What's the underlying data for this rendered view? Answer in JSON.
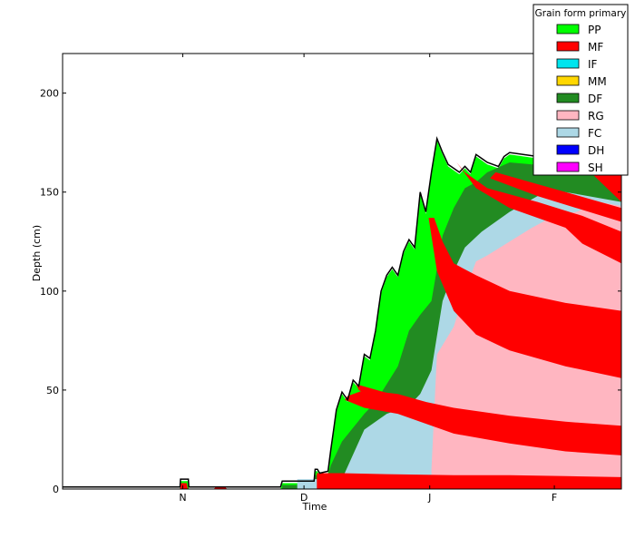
{
  "chart_data": {
    "type": "area",
    "title": "",
    "xlabel": "Time",
    "ylabel": "Depth (cm)",
    "x_range": [
      0,
      1
    ],
    "ylim": [
      0,
      220
    ],
    "x_ticks": [
      {
        "label": "N",
        "value": 0.215
      },
      {
        "label": "D",
        "value": 0.432
      },
      {
        "label": "J",
        "value": 0.657
      },
      {
        "label": "F",
        "value": 0.88
      }
    ],
    "y_ticks": [
      0,
      50,
      100,
      150,
      200
    ],
    "grid": false,
    "legend": {
      "title": "Grain form primary",
      "placement": "top-right",
      "entries": [
        {
          "label": "PP",
          "color": "#00ff00"
        },
        {
          "label": "MF",
          "color": "#ff0000"
        },
        {
          "label": "IF",
          "color": "#00e5ee"
        },
        {
          "label": "MM",
          "color": "#ffd700"
        },
        {
          "label": "DF",
          "color": "#228b22"
        },
        {
          "label": "RG",
          "color": "#ffb6c1"
        },
        {
          "label": "FC",
          "color": "#add8e6"
        },
        {
          "label": "DH",
          "color": "#0000ff"
        },
        {
          "label": "SH",
          "color": "#ff00ff"
        }
      ]
    },
    "snow_height_profile": [
      [
        0.0,
        1.0
      ],
      [
        0.21,
        1.0
      ],
      [
        0.211,
        5.0
      ],
      [
        0.225,
        5.0
      ],
      [
        0.226,
        1.0
      ],
      [
        0.39,
        1.0
      ],
      [
        0.393,
        4.0
      ],
      [
        0.45,
        4.0
      ],
      [
        0.452,
        10.0
      ],
      [
        0.456,
        10.0
      ],
      [
        0.46,
        8.0
      ],
      [
        0.475,
        9.0
      ],
      [
        0.48,
        20.0
      ],
      [
        0.485,
        30.0
      ],
      [
        0.49,
        40.0
      ],
      [
        0.5,
        49.0
      ],
      [
        0.51,
        45.0
      ],
      [
        0.52,
        55.0
      ],
      [
        0.53,
        52.0
      ],
      [
        0.54,
        68.0
      ],
      [
        0.55,
        66.0
      ],
      [
        0.56,
        80.0
      ],
      [
        0.565,
        90.0
      ],
      [
        0.57,
        100.0
      ],
      [
        0.58,
        108.0
      ],
      [
        0.59,
        112.0
      ],
      [
        0.6,
        108.0
      ],
      [
        0.61,
        120.0
      ],
      [
        0.62,
        126.0
      ],
      [
        0.63,
        122.0
      ],
      [
        0.64,
        150.0
      ],
      [
        0.65,
        140.0
      ],
      [
        0.66,
        160.0
      ],
      [
        0.67,
        177.0
      ],
      [
        0.68,
        170.0
      ],
      [
        0.69,
        164.0
      ],
      [
        0.7,
        162.0
      ],
      [
        0.71,
        160.0
      ],
      [
        0.72,
        163.0
      ],
      [
        0.73,
        160.0
      ],
      [
        0.74,
        169.0
      ],
      [
        0.75,
        167.0
      ],
      [
        0.76,
        165.0
      ],
      [
        0.77,
        164.0
      ],
      [
        0.78,
        163.0
      ],
      [
        0.79,
        168.0
      ],
      [
        0.8,
        170.0
      ],
      [
        0.85,
        168.0
      ],
      [
        0.9,
        165.0
      ],
      [
        1.0,
        165.0
      ]
    ],
    "layers": [
      {
        "grain": "PP",
        "polygon": [
          [
            0.0,
            0.0
          ],
          [
            0.21,
            0.0
          ],
          [
            0.211,
            4.0
          ],
          [
            0.225,
            4.0
          ],
          [
            0.226,
            0.0
          ],
          [
            0.39,
            0.0
          ],
          [
            0.393,
            3.0
          ],
          [
            0.45,
            3.0
          ],
          [
            0.452,
            9.0
          ],
          [
            0.456,
            9.0
          ],
          [
            0.46,
            7.0
          ],
          [
            0.475,
            8.0
          ],
          [
            0.48,
            19.0
          ],
          [
            0.485,
            29.0
          ],
          [
            0.49,
            39.0
          ],
          [
            0.5,
            48.0
          ],
          [
            0.51,
            44.0
          ],
          [
            0.52,
            54.0
          ],
          [
            0.53,
            51.0
          ],
          [
            0.54,
            67.0
          ],
          [
            0.55,
            65.0
          ],
          [
            0.56,
            79.0
          ],
          [
            0.565,
            89.0
          ],
          [
            0.57,
            99.0
          ],
          [
            0.58,
            107.0
          ],
          [
            0.59,
            111.0
          ],
          [
            0.6,
            107.0
          ],
          [
            0.61,
            119.0
          ],
          [
            0.62,
            125.0
          ],
          [
            0.63,
            121.0
          ],
          [
            0.64,
            149.0
          ],
          [
            0.65,
            139.0
          ],
          [
            0.66,
            159.0
          ],
          [
            0.67,
            176.0
          ],
          [
            0.68,
            169.0
          ],
          [
            0.69,
            163.0
          ],
          [
            0.7,
            161.0
          ],
          [
            0.71,
            159.0
          ],
          [
            0.72,
            162.0
          ],
          [
            0.73,
            159.0
          ],
          [
            0.74,
            168.0
          ],
          [
            0.75,
            166.0
          ],
          [
            0.76,
            164.0
          ],
          [
            0.77,
            163.0
          ],
          [
            0.78,
            162.0
          ],
          [
            0.79,
            167.0
          ],
          [
            0.8,
            169.0
          ],
          [
            0.85,
            167.0
          ],
          [
            0.9,
            164.0
          ],
          [
            1.0,
            164.0
          ],
          [
            1.0,
            0.0
          ]
        ]
      },
      {
        "grain": "DF",
        "polygon": [
          [
            0.393,
            0.0
          ],
          [
            0.393,
            2.0
          ],
          [
            0.45,
            2.0
          ],
          [
            0.452,
            7.0
          ],
          [
            0.475,
            7.0
          ],
          [
            0.48,
            12.0
          ],
          [
            0.5,
            24.0
          ],
          [
            0.52,
            31.0
          ],
          [
            0.54,
            38.0
          ],
          [
            0.56,
            44.0
          ],
          [
            0.6,
            62.0
          ],
          [
            0.62,
            80.0
          ],
          [
            0.64,
            88.0
          ],
          [
            0.66,
            95.0
          ],
          [
            0.68,
            128.0
          ],
          [
            0.7,
            142.0
          ],
          [
            0.72,
            152.0
          ],
          [
            0.74,
            155.0
          ],
          [
            0.76,
            160.0
          ],
          [
            0.8,
            165.0
          ],
          [
            1.0,
            160.0
          ],
          [
            1.0,
            0.0
          ]
        ]
      },
      {
        "grain": "FC",
        "polygon": [
          [
            0.42,
            0.0
          ],
          [
            0.42,
            5.0
          ],
          [
            0.45,
            5.0
          ],
          [
            0.5,
            5.0
          ],
          [
            0.54,
            30.0
          ],
          [
            0.58,
            38.0
          ],
          [
            0.6,
            40.0
          ],
          [
            0.62,
            42.0
          ],
          [
            0.64,
            48.0
          ],
          [
            0.66,
            60.0
          ],
          [
            0.68,
            95.0
          ],
          [
            0.7,
            110.0
          ],
          [
            0.72,
            122.0
          ],
          [
            0.75,
            130.0
          ],
          [
            0.8,
            140.0
          ],
          [
            0.85,
            148.0
          ],
          [
            0.9,
            150.0
          ],
          [
            1.0,
            145.0
          ],
          [
            1.0,
            0.0
          ]
        ]
      },
      {
        "grain": "RG",
        "polygon": [
          [
            0.66,
            0.0
          ],
          [
            0.66,
            10.0
          ],
          [
            0.67,
            68.0
          ],
          [
            0.7,
            82.0
          ],
          [
            0.72,
            100.0
          ],
          [
            0.74,
            115.0
          ],
          [
            0.76,
            118.0
          ],
          [
            0.8,
            125.0
          ],
          [
            0.84,
            132.0
          ],
          [
            0.88,
            138.0
          ],
          [
            0.92,
            140.0
          ],
          [
            0.96,
            145.0
          ],
          [
            1.0,
            143.0
          ],
          [
            1.0,
            0.0
          ]
        ]
      },
      {
        "grain": "MF",
        "polygon": [
          [
            0.455,
            0.0
          ],
          [
            0.455,
            8.0
          ],
          [
            0.5,
            8.0
          ],
          [
            0.58,
            7.5
          ],
          [
            0.7,
            7.0
          ],
          [
            0.8,
            7.0
          ],
          [
            0.9,
            6.5
          ],
          [
            1.0,
            6.0
          ],
          [
            1.0,
            0.0
          ]
        ]
      },
      {
        "grain": "MF",
        "polygon": [
          [
            0.505,
            45.0
          ],
          [
            0.54,
            41.0
          ],
          [
            0.6,
            38.0
          ],
          [
            0.65,
            33.0
          ],
          [
            0.7,
            28.0
          ],
          [
            0.8,
            23.0
          ],
          [
            0.9,
            19.0
          ],
          [
            1.0,
            17.0
          ],
          [
            1.0,
            32.0
          ],
          [
            0.9,
            34.0
          ],
          [
            0.8,
            37.0
          ],
          [
            0.7,
            41.0
          ],
          [
            0.65,
            44.0
          ],
          [
            0.6,
            48.0
          ],
          [
            0.54,
            50.0
          ],
          [
            0.51,
            47.0
          ]
        ]
      },
      {
        "grain": "MF",
        "polygon": [
          [
            0.525,
            53.0
          ],
          [
            0.6,
            47.0
          ],
          [
            0.65,
            44.0
          ],
          [
            0.6,
            45.0
          ],
          [
            0.55,
            47.0
          ],
          [
            0.53,
            50.0
          ]
        ]
      },
      {
        "grain": "MF",
        "polygon": [
          [
            0.655,
            137.0
          ],
          [
            0.67,
            110.0
          ],
          [
            0.7,
            90.0
          ],
          [
            0.74,
            78.0
          ],
          [
            0.8,
            70.0
          ],
          [
            0.9,
            62.0
          ],
          [
            1.0,
            56.0
          ],
          [
            1.0,
            90.0
          ],
          [
            0.9,
            94.0
          ],
          [
            0.8,
            100.0
          ],
          [
            0.74,
            108.0
          ],
          [
            0.7,
            114.0
          ],
          [
            0.68,
            125.0
          ],
          [
            0.665,
            137.0
          ]
        ]
      },
      {
        "grain": "MF",
        "polygon": [
          [
            0.705,
            165.0
          ],
          [
            0.74,
            152.0
          ],
          [
            0.8,
            142.0
          ],
          [
            0.9,
            132.0
          ],
          [
            0.93,
            124.0
          ],
          [
            1.0,
            114.0
          ],
          [
            1.0,
            130.0
          ],
          [
            0.93,
            138.0
          ],
          [
            0.85,
            145.0
          ],
          [
            0.76,
            152.0
          ],
          [
            0.72,
            160.0
          ]
        ]
      },
      {
        "grain": "MF",
        "polygon": [
          [
            0.765,
            157.0
          ],
          [
            0.85,
            148.0
          ],
          [
            1.0,
            135.0
          ],
          [
            1.0,
            142.0
          ],
          [
            0.85,
            154.0
          ],
          [
            0.775,
            160.0
          ]
        ]
      },
      {
        "grain": "MF",
        "polygon": [
          [
            0.93,
            164.0
          ],
          [
            1.0,
            145.0
          ],
          [
            1.0,
            164.0
          ]
        ]
      },
      {
        "grain": "MF",
        "polygon": [
          [
            0.21,
            0.0
          ],
          [
            0.212,
            3.0
          ],
          [
            0.222,
            3.0
          ],
          [
            0.224,
            0.0
          ]
        ]
      },
      {
        "grain": "MF",
        "polygon": [
          [
            0.27,
            0.0
          ],
          [
            0.275,
            1.0
          ],
          [
            0.29,
            1.0
          ],
          [
            0.295,
            0.0
          ]
        ]
      }
    ]
  }
}
